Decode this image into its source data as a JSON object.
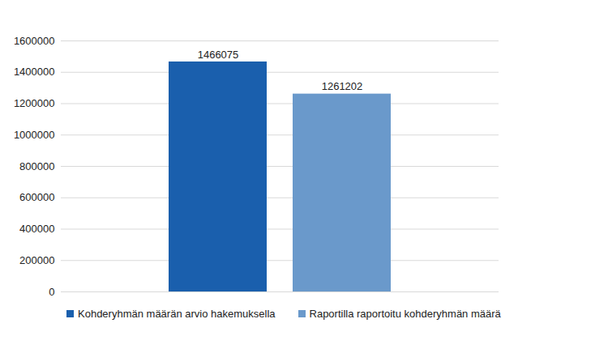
{
  "chart_data": {
    "type": "bar",
    "categories": [
      null
    ],
    "series": [
      {
        "name": "Kohderyhmän määrän arvio hakemuksella",
        "color": "#1a5fad",
        "values": [
          1466075
        ]
      },
      {
        "name": "Raportilla raportoitu kohderyhmän määrä",
        "color": "#6a99cb",
        "values": [
          1261202
        ]
      }
    ],
    "ylim": [
      0,
      1600000
    ],
    "yticks": [
      0,
      200000,
      400000,
      600000,
      800000,
      1000000,
      1200000,
      1400000,
      1600000
    ],
    "grid": true,
    "data_labels": true,
    "legend": "bottom",
    "tick_labels": "y"
  }
}
